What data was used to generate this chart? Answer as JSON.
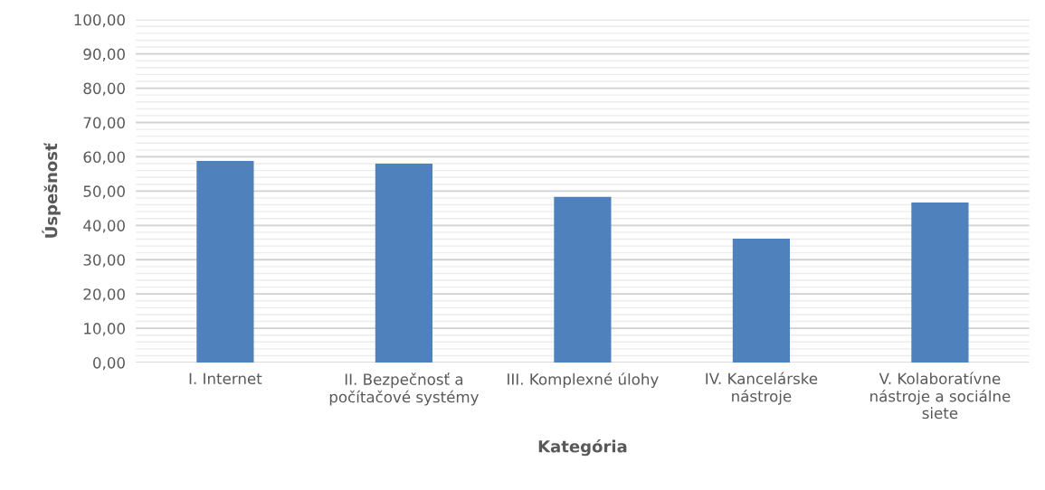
{
  "chart_data": {
    "type": "bar",
    "xlabel": "Kategória",
    "ylabel": "Úspešnosť",
    "categories": [
      "I. Internet",
      "II. Bezpečnosť a\npočítačové systémy",
      "III. Komplexné úlohy",
      "IV. Kancelárske\nnástroje",
      "V. Kolaboratívne\nnástroje a sociálne\nsiete"
    ],
    "values": [
      58.8,
      58.0,
      48.3,
      36.1,
      46.7
    ],
    "color": "#4f81bd",
    "ylim": [
      0,
      100
    ],
    "yticks": [
      {
        "value": 0,
        "label": "0,00"
      },
      {
        "value": 10,
        "label": "10,00"
      },
      {
        "value": 20,
        "label": "20,00"
      },
      {
        "value": 30,
        "label": "30,00"
      },
      {
        "value": 40,
        "label": "40,00"
      },
      {
        "value": 50,
        "label": "50,00"
      },
      {
        "value": 60,
        "label": "60,00"
      },
      {
        "value": 70,
        "label": "70,00"
      },
      {
        "value": 80,
        "label": "80,00"
      },
      {
        "value": 90,
        "label": "90,00"
      },
      {
        "value": 100,
        "label": "100,00"
      }
    ],
    "grid": "y"
  }
}
